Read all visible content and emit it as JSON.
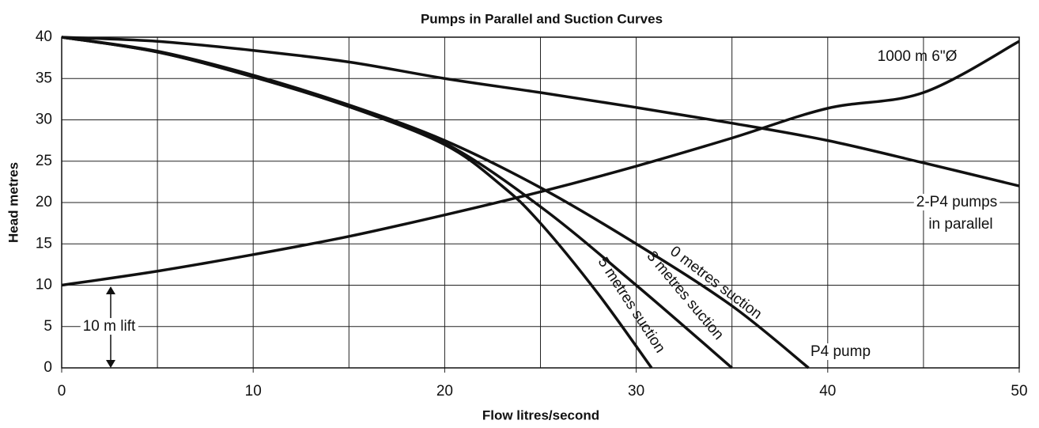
{
  "chart_data": {
    "type": "line",
    "title": "Pumps in Parallel and Suction Curves",
    "x_label": "Flow litres/second",
    "y_label": "Head metres",
    "xlim": [
      0,
      50
    ],
    "xticks": [
      0,
      10,
      20,
      30,
      40,
      50
    ],
    "x_grid": [
      0,
      5,
      10,
      15,
      20,
      25,
      30,
      35,
      40,
      45,
      50
    ],
    "ylim": [
      0,
      40
    ],
    "yticks": [
      0,
      5,
      10,
      15,
      20,
      25,
      30,
      35,
      40
    ],
    "grid": true,
    "color": "#111111",
    "series": [
      {
        "name": "1000 m 6\"Ø",
        "x": [
          0,
          5,
          10,
          15,
          20,
          25,
          30,
          35,
          40,
          45,
          50
        ],
        "values": [
          10,
          11.7,
          13.7,
          15.9,
          18.5,
          21.3,
          24.4,
          27.8,
          31.4,
          33.3,
          39.5
        ]
      },
      {
        "x": [
          0,
          5,
          10,
          15,
          20,
          25,
          30,
          35,
          40,
          45,
          50
        ],
        "values": [
          40,
          39.5,
          38.4,
          37,
          35,
          33.3,
          31.5,
          29.6,
          27.5,
          24.8,
          22
        ]
      },
      {
        "name": "0 metres suction",
        "x": [
          0,
          5,
          10,
          15,
          20,
          25,
          30,
          35,
          39
        ],
        "values": [
          40,
          38.3,
          35.4,
          31.8,
          27.5,
          21.8,
          15,
          7.5,
          0
        ]
      },
      {
        "name": "3 metres suction",
        "x": [
          0,
          5,
          10,
          15,
          20,
          25,
          30,
          35
        ],
        "values": [
          40,
          38.2,
          35.2,
          31.6,
          27.2,
          19.5,
          10,
          0
        ]
      },
      {
        "name": "5 metres suction",
        "x": [
          0,
          5,
          10,
          15,
          20,
          23,
          25,
          28,
          30.8
        ],
        "values": [
          40,
          38.2,
          35.2,
          31.6,
          27,
          22,
          17.5,
          9,
          0
        ]
      }
    ],
    "annotations": [
      "2-P4 pumps",
      "in parallel",
      "P4 pump",
      "10 m lift"
    ]
  }
}
